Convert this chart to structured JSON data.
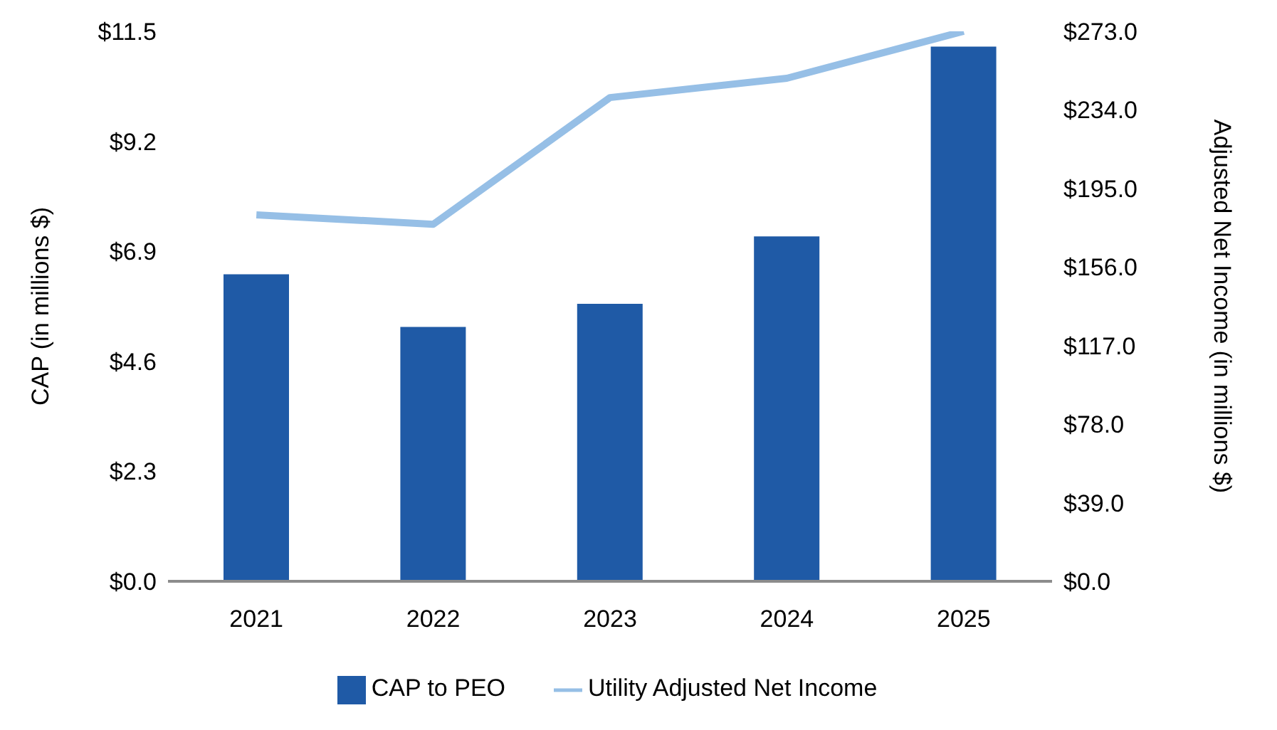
{
  "chart_data": {
    "type": "bar",
    "categories": [
      "2021",
      "2022",
      "2023",
      "2024",
      "2025"
    ],
    "ylabel": "CAP (in millions $)",
    "y2label": "Adjusted Net Income (in millions $)",
    "series": [
      {
        "name": "CAP to PEO",
        "color": "#1f5aa6",
        "values": [
          6.42,
          5.32,
          5.8,
          7.21,
          11.18
        ]
      },
      {
        "name": "Utility Adjusted Net Income",
        "type": "line",
        "axis": "y2",
        "color": "#96bfe6",
        "values": [
          181.9,
          177.2,
          240.1,
          249.7,
          273
        ]
      }
    ],
    "ylim": [
      0,
      11.5
    ],
    "yticks": [
      {
        "value": 0,
        "label": "$0.0"
      },
      {
        "value": 2.3,
        "label": "$2.3"
      },
      {
        "value": 4.6,
        "label": "$4.6"
      },
      {
        "value": 6.9,
        "label": "$6.9"
      },
      {
        "value": 9.2,
        "label": "$9.2"
      },
      {
        "value": 11.5,
        "label": "$11.5"
      }
    ],
    "y2lim": [
      0,
      273
    ],
    "y2ticks": [
      {
        "value": 0,
        "label": "$0.0"
      },
      {
        "value": 39,
        "label": "$39.0"
      },
      {
        "value": 78,
        "label": "$78.0"
      },
      {
        "value": 117,
        "label": "$117.0"
      },
      {
        "value": 156,
        "label": "$156.0"
      },
      {
        "value": 195,
        "label": "$195.0"
      },
      {
        "value": 234,
        "label": "$234.0"
      },
      {
        "value": 273,
        "label": "$273.0"
      }
    ],
    "grid": false,
    "legend": "bottom",
    "marker": "none"
  }
}
